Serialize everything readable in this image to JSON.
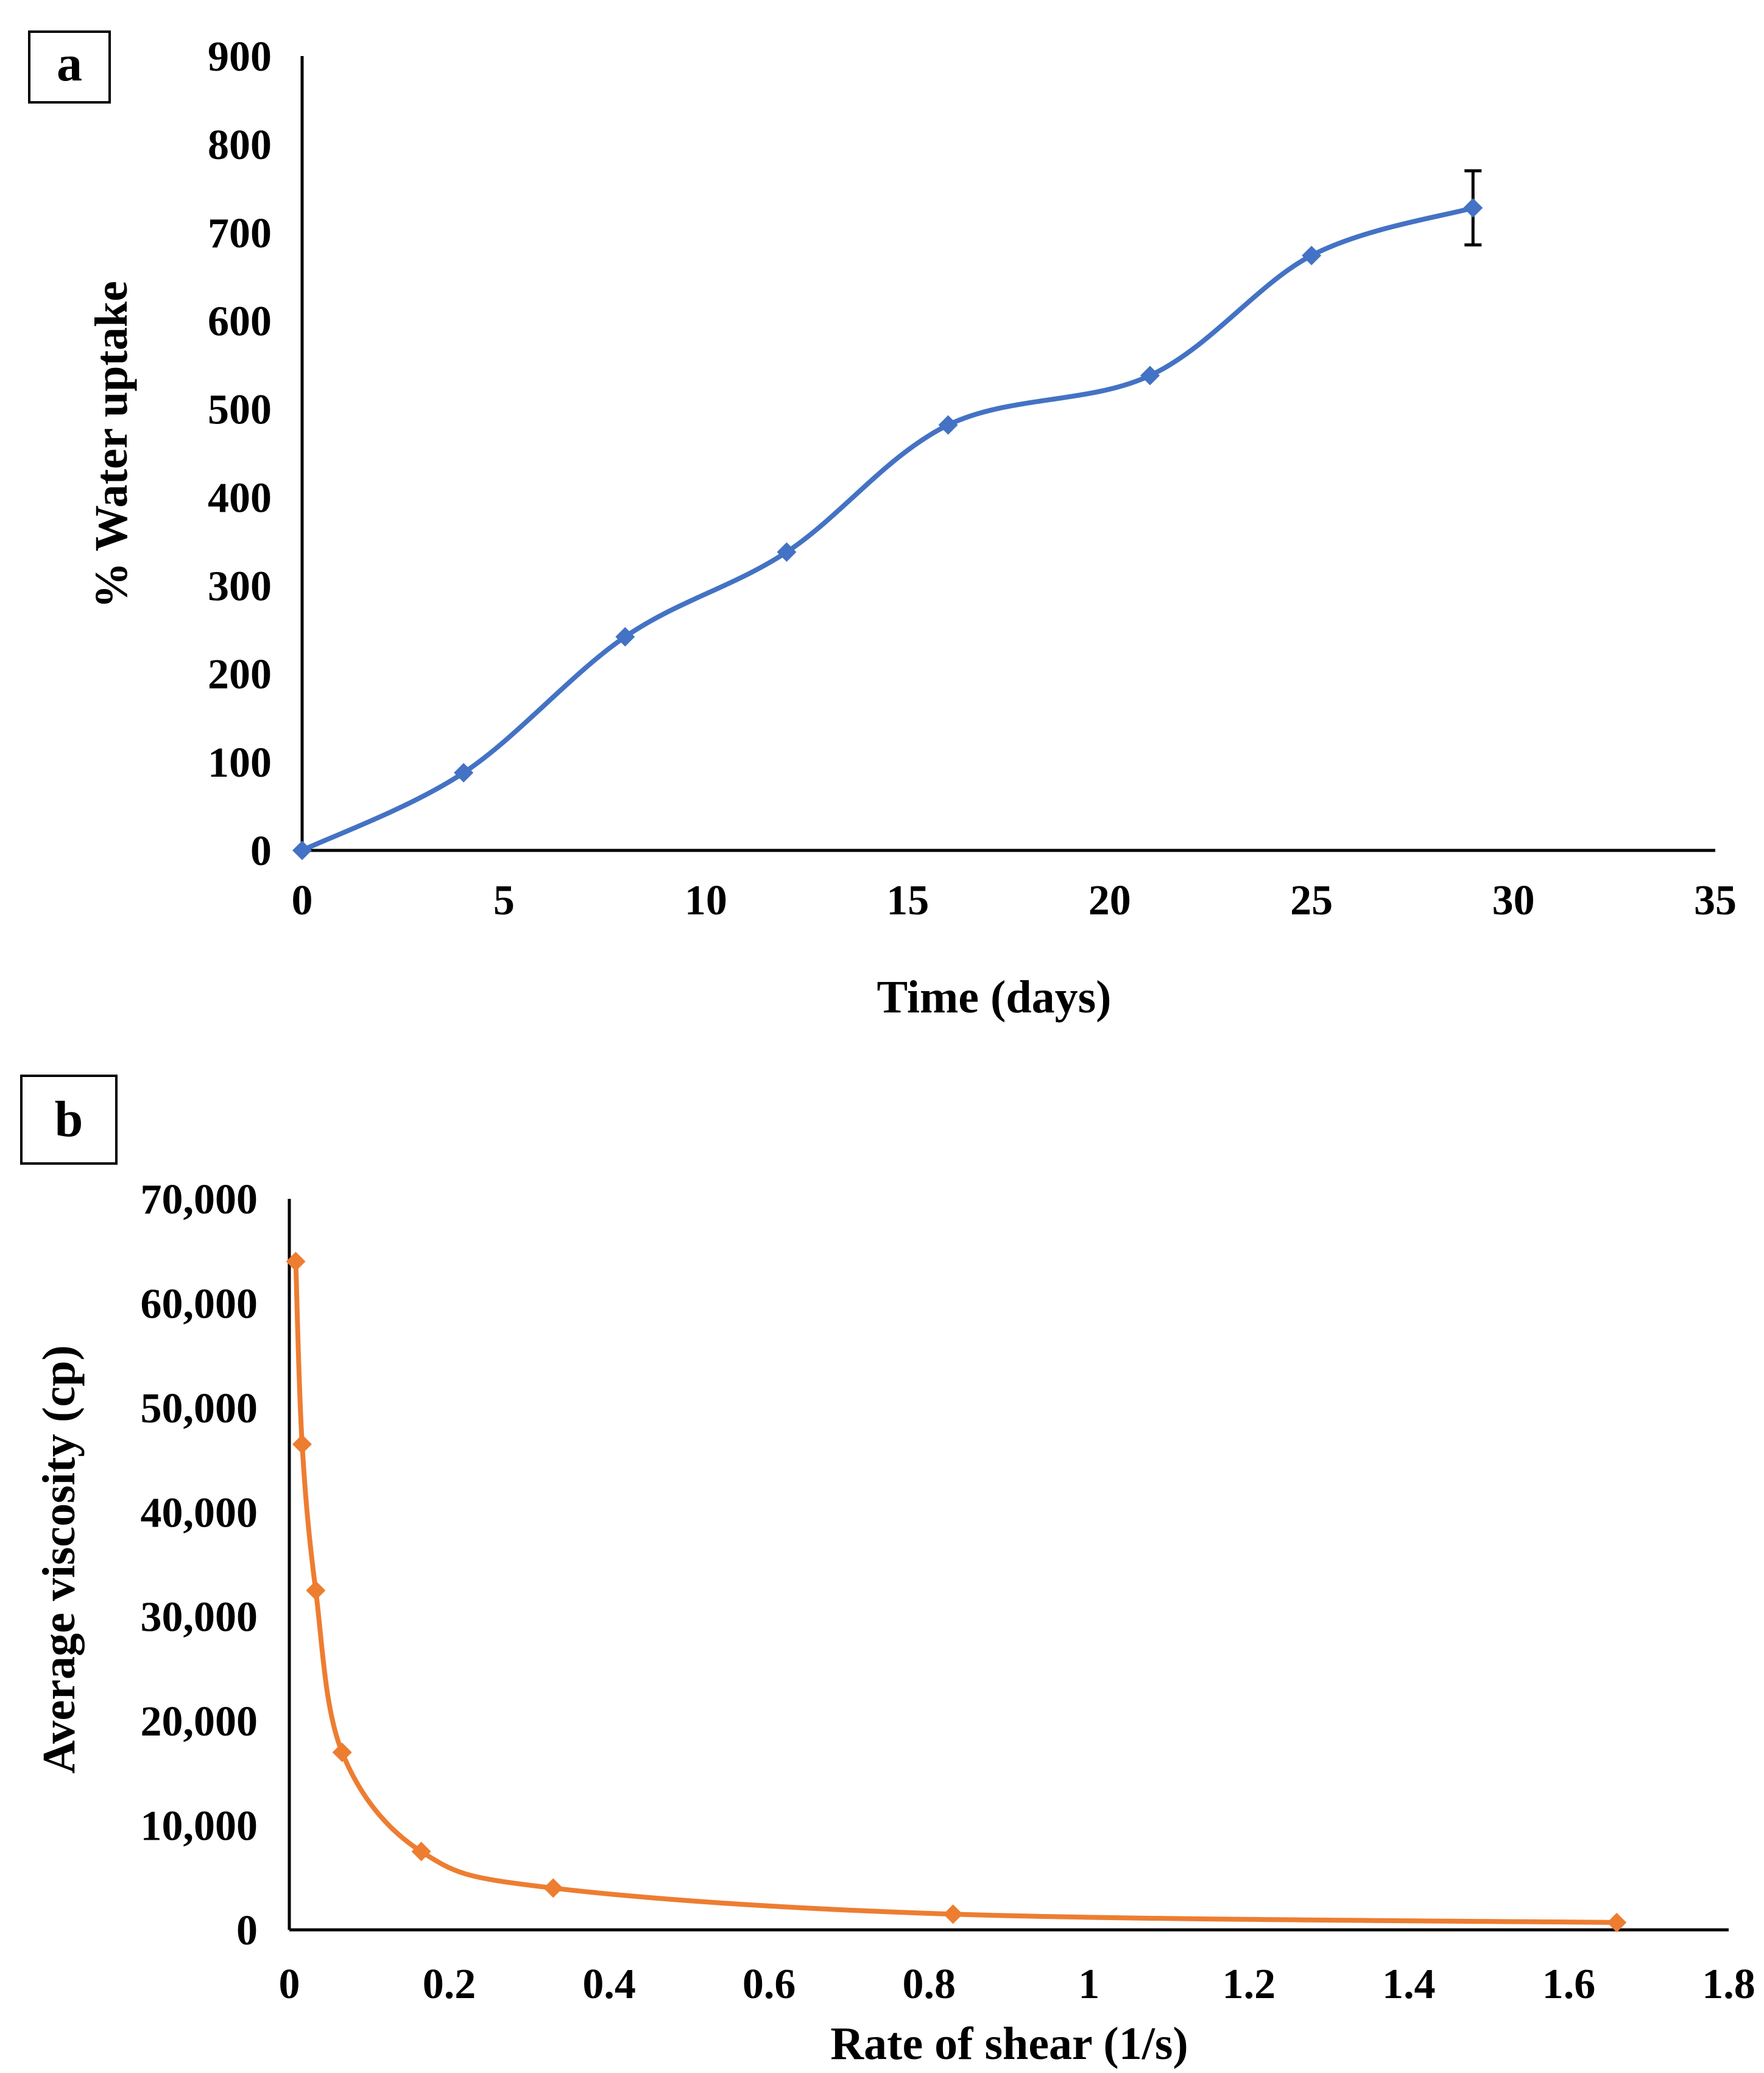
{
  "colors": {
    "series_a": "#4472C4",
    "series_b": "#ED7D31",
    "axis": "#000000"
  },
  "chart_data": [
    {
      "type": "line",
      "panel_label": "a",
      "title": "",
      "xlabel": "Time (days)",
      "ylabel": "% Water uptake",
      "xlim": [
        0,
        35
      ],
      "ylim": [
        0,
        900
      ],
      "xticks": [
        0,
        5,
        10,
        15,
        20,
        25,
        30,
        35
      ],
      "yticks": [
        0,
        100,
        200,
        300,
        400,
        500,
        600,
        700,
        800,
        900
      ],
      "xtick_labels": [
        "0",
        "5",
        "10",
        "15",
        "20",
        "25",
        "30",
        "35"
      ],
      "ytick_labels": [
        "0",
        "100",
        "200",
        "300",
        "400",
        "500",
        "600",
        "700",
        "800",
        "900"
      ],
      "grid": false,
      "series": [
        {
          "name": "% Water uptake",
          "x": [
            0,
            4,
            8,
            12,
            16,
            21,
            25,
            29
          ],
          "y": [
            0,
            88,
            242,
            338,
            482,
            538,
            674,
            728
          ],
          "error_bar": {
            "index": 7,
            "plus": 42,
            "minus": 42
          }
        }
      ]
    },
    {
      "type": "line",
      "panel_label": "b",
      "title": "",
      "xlabel": "Rate of shear (1/s)",
      "ylabel": "Average viscosity (cp)",
      "xlim": [
        0,
        1.8
      ],
      "ylim": [
        0,
        70000
      ],
      "xticks": [
        0,
        0.2,
        0.4,
        0.6,
        0.8,
        1,
        1.2,
        1.4,
        1.6,
        1.8
      ],
      "yticks": [
        0,
        10000,
        20000,
        30000,
        40000,
        50000,
        60000,
        70000
      ],
      "xtick_labels": [
        "0",
        "0.2",
        "0.4",
        "0.6",
        "0.8",
        "1",
        "1.2",
        "1.4",
        "1.6",
        "1.8"
      ],
      "ytick_labels": [
        "0",
        "10,000",
        "20,000",
        "30,000",
        "40,000",
        "50,000",
        "60,000",
        "70,000"
      ],
      "grid": false,
      "series": [
        {
          "name": "Average viscosity",
          "x": [
            0.008,
            0.016,
            0.033,
            0.066,
            0.165,
            0.33,
            0.83,
            1.66
          ],
          "y": [
            64000,
            46500,
            32500,
            17000,
            7500,
            4000,
            1500,
            700
          ]
        }
      ]
    }
  ]
}
